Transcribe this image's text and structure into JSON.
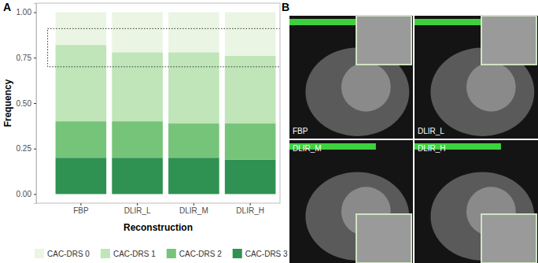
{
  "chart_data": {
    "type": "bar",
    "stacked": true,
    "grid": false,
    "x_label": "Reconstruction",
    "y_label": "Frequency",
    "categories": [
      "FBP",
      "DLIR_L",
      "DLIR_M",
      "DLIR_H"
    ],
    "series": [
      {
        "name": "CAC-DRS 0",
        "color": "#eaf5e4",
        "values": [
          0.18,
          0.22,
          0.22,
          0.24
        ]
      },
      {
        "name": "CAC-DRS 1",
        "color": "#bfe5b8",
        "values": [
          0.42,
          0.38,
          0.39,
          0.37
        ]
      },
      {
        "name": "CAC-DRS 2",
        "color": "#76c479",
        "values": [
          0.2,
          0.2,
          0.19,
          0.2
        ]
      },
      {
        "name": "CAC-DRS 3",
        "color": "#2f9152",
        "values": [
          0.2,
          0.2,
          0.2,
          0.19
        ]
      }
    ],
    "ylim": [
      -0.05,
      1.05
    ],
    "yticks": [
      {
        "value": 0,
        "label": "0.00"
      },
      {
        "value": 0.25,
        "label": "0.25"
      },
      {
        "value": 0.5,
        "label": "0.50"
      },
      {
        "value": 0.75,
        "label": "0.75"
      },
      {
        "value": 1,
        "label": "1.00"
      }
    ],
    "legend": "bottom",
    "highlight_range": [
      0.7,
      0.91
    ]
  },
  "panel_labels": [
    "A",
    "B"
  ],
  "image_panel": {
    "tiles": [
      "FBP",
      "DLIR_L",
      "DLIR_M",
      "DLIR_H"
    ]
  }
}
